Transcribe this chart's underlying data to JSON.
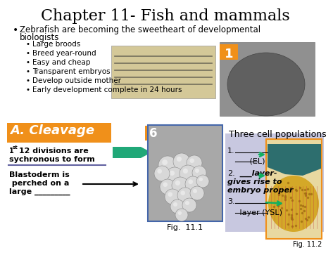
{
  "title": "Chapter 11- Fish and mammals",
  "title_fontsize": 16,
  "background_color": "#ffffff",
  "bullet_main": "Zebrafish are becoming the sweetheart of developmental\n  biologists",
  "sub_bullets": [
    "Large broods",
    "Breed year-round",
    "Easy and cheap",
    "Transparent embryos",
    "Develop outside mother",
    "Early development complete in 24 hours"
  ],
  "orange_label_1": "1",
  "orange_label_6": "6",
  "orange_bg": "#f0901a",
  "cleavage_box_color": "#f0901a",
  "cleavage_title": "A. Cleavage",
  "cleavage_line1": "1st 12 divisions are",
  "cleavage_line2": "sychronous to form",
  "cleavage_line3": "Blastoderm is",
  "cleavage_line4": " perched on a",
  "cleavage_line5": "large _________",
  "three_cell_title": "Three cell populations",
  "three_cell_1": "1.  ___________",
  "three_cell_1b": "         (EL)",
  "three_cell_2a": "2.  ___layer-",
  "three_cell_2b": "gives rise to",
  "three_cell_2c": "embryo proper",
  "three_cell_3a": "3.  ___________",
  "three_cell_3b": "    layer (YSL)",
  "fig11_1_label": "Fig.  11.1",
  "fig11_2_label": "Fig. 11.2",
  "lavender_bg": "#c8c8e0",
  "orange_border": "#f0901a",
  "arrow_color_green": "#20b080",
  "arrow_color_black": "#000000",
  "fig11_border_color": "#6699cc"
}
